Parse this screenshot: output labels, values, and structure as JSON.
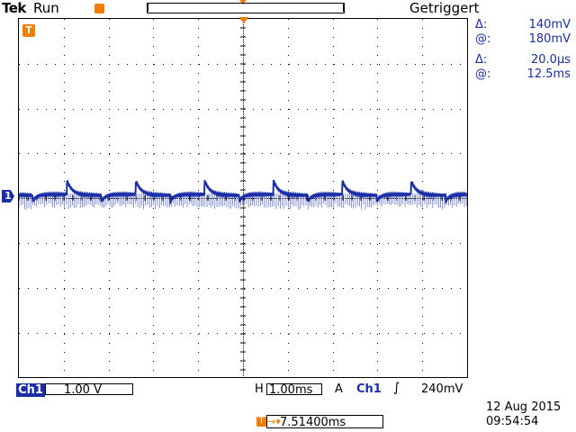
{
  "top": {
    "brand": "Tek",
    "acq_state": "Run",
    "trigger_status": "Getriggert"
  },
  "cursors": {
    "delta_v_label": "Δ:",
    "delta_v": "140mV",
    "at_v_label": "@:",
    "at_v": "180mV",
    "delta_t_label": "Δ:",
    "delta_t": "20.0µs",
    "at_t_label": "@:",
    "at_t": "12.5ms"
  },
  "markers": {
    "ch1": "1",
    "trigger": "T"
  },
  "bottom": {
    "ch1_label": "Ch1",
    "ch1_scale": "1.00 V",
    "h_label": "H",
    "h_scale": "1.00ms",
    "trig_mode": "A",
    "trig_source": "Ch1",
    "trig_slope": "∫",
    "trig_level": "240mV",
    "position_icon": "T",
    "position_arrow": "→▾",
    "position": "7.51400ms",
    "date": "12 Aug 2015",
    "time": "09:54:54"
  },
  "colors": {
    "trace": "#1a2ea8",
    "accent": "#f07d00"
  }
}
